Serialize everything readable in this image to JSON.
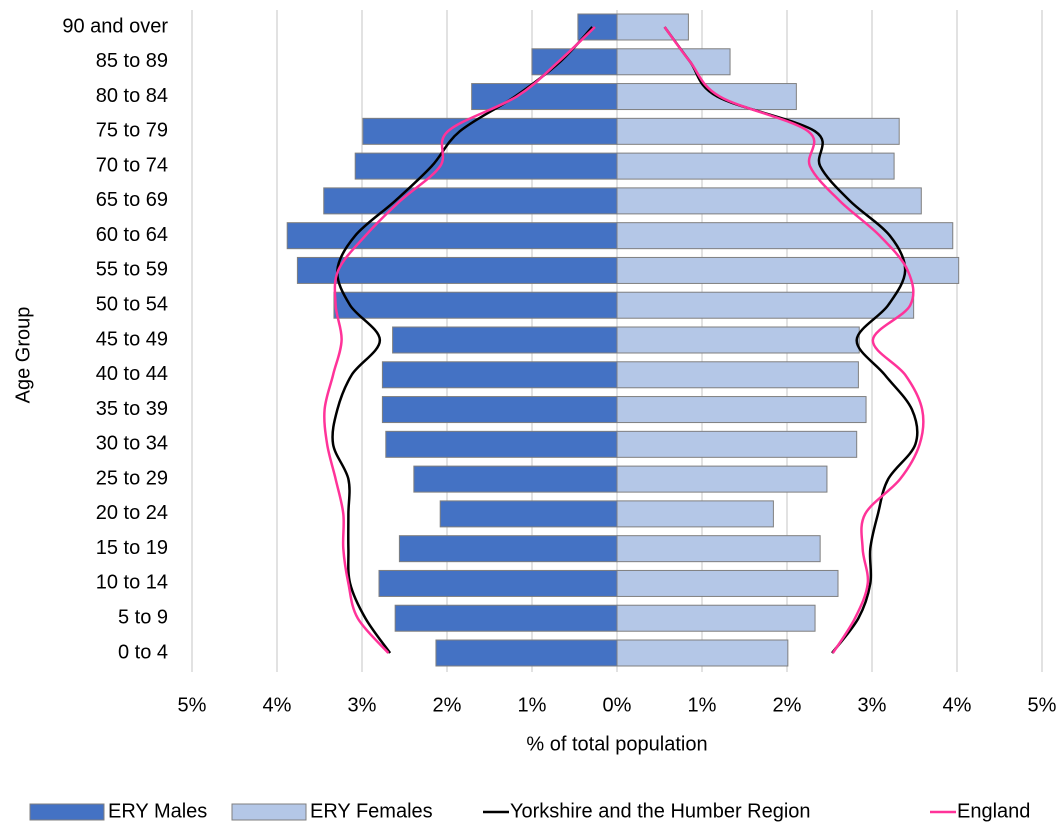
{
  "chart_data": {
    "type": "pyramid",
    "x_label": "% of total population",
    "y_label": "Age Group",
    "categories": [
      "0 to 4",
      "5 to 9",
      "10 to 14",
      "15 to 19",
      "20 to 24",
      "25 to 29",
      "30 to 34",
      "35 to 39",
      "40 to 44",
      "45 to 49",
      "50 to 54",
      "55 to 59",
      "60 to 64",
      "65 to 69",
      "70 to 74",
      "75 to 79",
      "80 to 84",
      "85 to 89",
      "90 and over"
    ],
    "xlim": [
      -5,
      5
    ],
    "xticks": [
      {
        "value": -5,
        "label": "5%"
      },
      {
        "value": -4,
        "label": "4%"
      },
      {
        "value": -3,
        "label": "3%"
      },
      {
        "value": -2,
        "label": "2%"
      },
      {
        "value": -1,
        "label": "1%"
      },
      {
        "value": 0,
        "label": "0%"
      },
      {
        "value": 1,
        "label": "1%"
      },
      {
        "value": 2,
        "label": "2%"
      },
      {
        "value": 3,
        "label": "3%"
      },
      {
        "value": 4,
        "label": "4%"
      },
      {
        "value": 5,
        "label": "5%"
      }
    ],
    "grid": true,
    "series": [
      {
        "name": "ERY Males",
        "kind": "bar",
        "color": "#4472c4",
        "values": [
          -2.13,
          -2.61,
          -2.8,
          -2.56,
          -2.08,
          -2.39,
          -2.72,
          -2.76,
          -2.76,
          -2.64,
          -3.33,
          -3.76,
          -3.88,
          -3.45,
          -3.08,
          -2.99,
          -1.71,
          -1.0,
          -0.46
        ]
      },
      {
        "name": "ERY Females",
        "kind": "bar",
        "color": "#b4c7e7",
        "values": [
          2.01,
          2.33,
          2.6,
          2.39,
          1.84,
          2.47,
          2.82,
          2.93,
          2.84,
          2.85,
          3.49,
          4.02,
          3.95,
          3.58,
          3.26,
          3.32,
          2.11,
          1.33,
          0.84
        ]
      },
      {
        "name": "Yorkshire and the Humber Region",
        "kind": "line",
        "color": "#000000",
        "male_values": [
          -2.67,
          -2.96,
          -3.14,
          -3.16,
          -3.16,
          -3.16,
          -3.34,
          -3.29,
          -3.12,
          -2.79,
          -3.14,
          -3.29,
          -3.08,
          -2.61,
          -2.18,
          -1.85,
          -1.2,
          -0.67,
          -0.29
        ],
        "female_values": [
          2.53,
          2.84,
          2.98,
          2.98,
          3.07,
          3.19,
          3.51,
          3.47,
          3.15,
          2.82,
          3.19,
          3.39,
          3.21,
          2.74,
          2.39,
          2.33,
          1.18,
          0.86,
          0.56
        ]
      },
      {
        "name": "England",
        "kind": "line",
        "color": "#ff3399",
        "male_values": [
          -2.69,
          -3.05,
          -3.16,
          -3.22,
          -3.22,
          -3.31,
          -3.41,
          -3.44,
          -3.34,
          -3.24,
          -3.31,
          -3.28,
          -2.96,
          -2.55,
          -2.08,
          -1.99,
          -1.18,
          -0.69,
          -0.26
        ],
        "female_values": [
          2.54,
          2.8,
          2.95,
          2.89,
          2.92,
          3.33,
          3.56,
          3.59,
          3.39,
          3.01,
          3.45,
          3.42,
          3.09,
          2.62,
          2.27,
          2.25,
          1.21,
          0.86,
          0.56
        ]
      }
    ]
  }
}
